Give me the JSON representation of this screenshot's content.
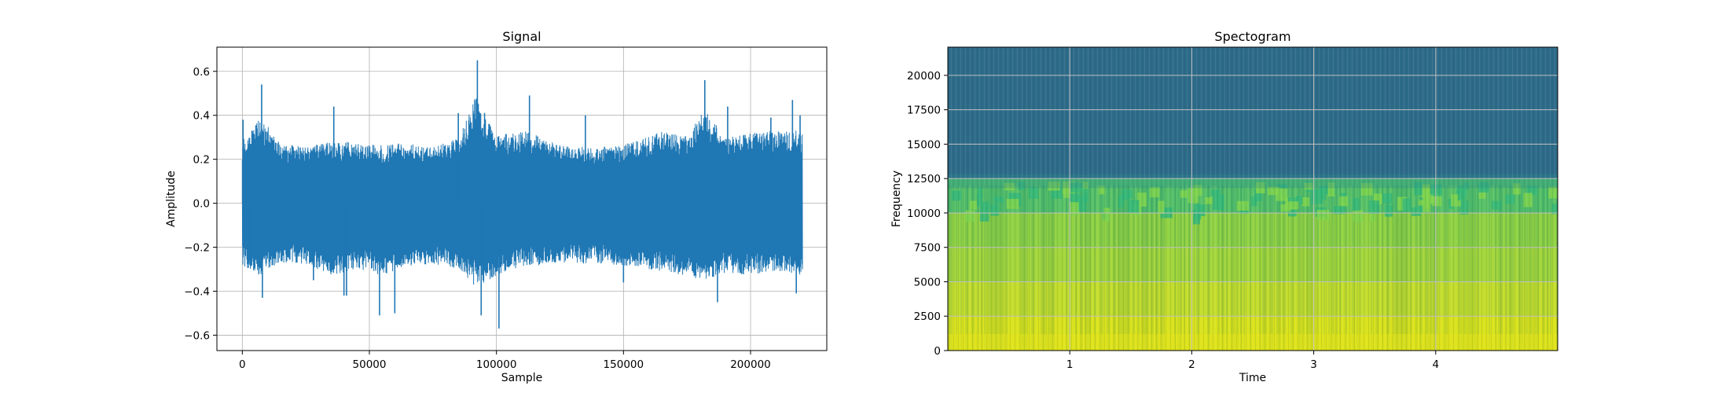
{
  "figure": {
    "background": "#ffffff",
    "grid": true
  },
  "chart_data": [
    {
      "type": "line",
      "title": "Signal",
      "xlabel": "Sample",
      "ylabel": "Amplitude",
      "xlim": [
        -10000,
        230000
      ],
      "ylim": [
        -0.67,
        0.71
      ],
      "xticks": [
        0,
        50000,
        100000,
        150000,
        200000
      ],
      "xtick_labels": [
        "0",
        "50000",
        "100000",
        "150000",
        "200000"
      ],
      "yticks": [
        -0.6,
        -0.4,
        -0.2,
        0.0,
        0.2,
        0.4,
        0.6
      ],
      "ytick_labels": [
        "−0.6",
        "−0.4",
        "−0.2",
        "0.0",
        "0.2",
        "0.4",
        "0.6"
      ],
      "line_color": "#1f77b4",
      "n_samples": 220500,
      "envelope": {
        "description": "approximate min/max envelope of the waveform",
        "x": [
          0,
          7000,
          15000,
          25000,
          35000,
          45000,
          55000,
          65000,
          75000,
          85000,
          92000,
          100000,
          112000,
          125000,
          140000,
          155000,
          165000,
          175000,
          182000,
          190000,
          200000,
          210000,
          220500
        ],
        "upper": [
          0.26,
          0.36,
          0.25,
          0.23,
          0.26,
          0.25,
          0.24,
          0.25,
          0.23,
          0.27,
          0.45,
          0.28,
          0.3,
          0.24,
          0.23,
          0.26,
          0.3,
          0.28,
          0.4,
          0.27,
          0.29,
          0.3,
          0.3
        ],
        "lower": [
          -0.26,
          -0.3,
          -0.25,
          -0.25,
          -0.3,
          -0.27,
          -0.3,
          -0.26,
          -0.25,
          -0.27,
          -0.35,
          -0.3,
          -0.26,
          -0.25,
          -0.25,
          -0.27,
          -0.28,
          -0.3,
          -0.32,
          -0.29,
          -0.3,
          -0.28,
          -0.3
        ]
      },
      "spikes": [
        {
          "x": 300,
          "y": 0.38
        },
        {
          "x": 7600,
          "y": 0.54
        },
        {
          "x": 7900,
          "y": -0.43
        },
        {
          "x": 36000,
          "y": 0.44
        },
        {
          "x": 41000,
          "y": -0.42
        },
        {
          "x": 54000,
          "y": -0.51
        },
        {
          "x": 60000,
          "y": -0.5
        },
        {
          "x": 85000,
          "y": 0.41
        },
        {
          "x": 92500,
          "y": 0.65
        },
        {
          "x": 94000,
          "y": -0.51
        },
        {
          "x": 101000,
          "y": -0.57
        },
        {
          "x": 113000,
          "y": 0.49
        },
        {
          "x": 135000,
          "y": 0.4
        },
        {
          "x": 182000,
          "y": 0.56
        },
        {
          "x": 187000,
          "y": -0.45
        },
        {
          "x": 191000,
          "y": 0.44
        },
        {
          "x": 208000,
          "y": 0.39
        },
        {
          "x": 216500,
          "y": 0.47
        },
        {
          "x": 219500,
          "y": 0.4
        },
        {
          "x": 218000,
          "y": -0.41
        },
        {
          "x": 3000,
          "y": -0.28
        },
        {
          "x": 40000,
          "y": -0.42
        },
        {
          "x": 28000,
          "y": -0.35
        },
        {
          "x": 150000,
          "y": -0.36
        }
      ]
    },
    {
      "type": "heatmap",
      "title": "Spectogram",
      "xlabel": "Time",
      "ylabel": "Frequency",
      "xlim": [
        0.0,
        5.0
      ],
      "ylim": [
        0,
        22050
      ],
      "xticks": [
        1,
        2,
        3,
        4
      ],
      "xtick_labels": [
        "1",
        "2",
        "3",
        "4"
      ],
      "yticks": [
        0,
        2500,
        5000,
        7500,
        10000,
        12500,
        15000,
        17500,
        20000
      ],
      "ytick_labels": [
        "0",
        "2500",
        "5000",
        "7500",
        "10000",
        "12500",
        "15000",
        "17500",
        "20000"
      ],
      "colormap": "viridis",
      "background_color": "#2e6b8a",
      "grid_color": "#c0c0c0",
      "intensity_bands": [
        {
          "freq_from": 0,
          "freq_to": 2500,
          "color": "#d8e219"
        },
        {
          "freq_from": 2500,
          "freq_to": 5000,
          "color": "#c1dc2a"
        },
        {
          "freq_from": 5000,
          "freq_to": 7500,
          "color": "#9fd53a"
        },
        {
          "freq_from": 7500,
          "freq_to": 10000,
          "color": "#8ad043"
        },
        {
          "freq_from": 10000,
          "freq_to": 12500,
          "color": "#4fbf6a"
        },
        {
          "freq_from": 12500,
          "freq_to": 22050,
          "color": "#2e6b8a"
        }
      ]
    }
  ]
}
